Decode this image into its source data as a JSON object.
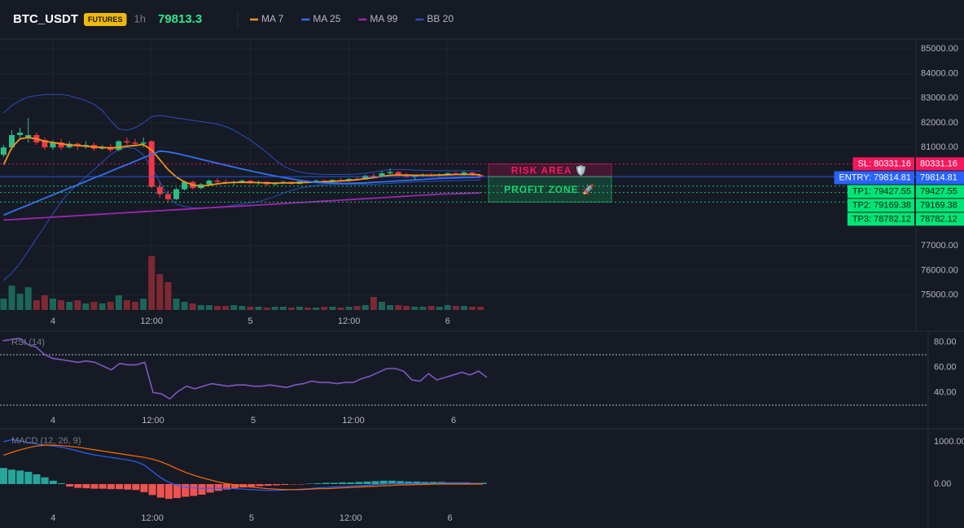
{
  "header": {
    "symbol": "BTC_USDT",
    "badge": "FUTURES",
    "interval": "1h"
  },
  "chart_data": [
    {
      "type": "candlestick",
      "categories": [
        null,
        null,
        null,
        null,
        null,
        null,
        "4",
        null,
        null,
        null,
        null,
        null,
        null,
        null,
        null,
        null,
        null,
        null,
        "12:00",
        null,
        null,
        null,
        null,
        null,
        null,
        null,
        null,
        null,
        null,
        null,
        "5",
        null,
        null,
        null,
        null,
        null,
        null,
        null,
        null,
        null,
        null,
        null,
        "12:00",
        null,
        null,
        null,
        null,
        null,
        null,
        null,
        null,
        null,
        null,
        null,
        "6",
        null,
        null,
        null,
        null
      ],
      "open": [
        80700,
        81000,
        81500,
        81400,
        81500,
        81300,
        81000,
        81200,
        81000,
        81150,
        81050,
        81100,
        80950,
        81000,
        80900,
        81250,
        81200,
        81150,
        81250,
        79400,
        79100,
        78900,
        79300,
        79600,
        79350,
        79500,
        79650,
        79600,
        79550,
        79600,
        79650,
        79550,
        79600,
        79500,
        79550,
        79600,
        79520,
        79620,
        79580,
        79650,
        79600,
        79680,
        79650,
        79720,
        79700,
        79850,
        79800,
        79950,
        80000,
        79850,
        79800,
        79850,
        79900,
        79850,
        79900,
        79950,
        79900,
        79980,
        79880
      ],
      "high": [
        81100,
        81700,
        81800,
        82200,
        81600,
        81400,
        81300,
        81350,
        81250,
        81200,
        81250,
        81200,
        81100,
        81150,
        81300,
        81400,
        81350,
        81400,
        81300,
        79600,
        79250,
        79350,
        79650,
        79650,
        79550,
        79700,
        79750,
        79700,
        79650,
        79700,
        79680,
        79650,
        79620,
        79600,
        79650,
        79620,
        79650,
        79680,
        79700,
        79700,
        79700,
        79750,
        79750,
        79800,
        79900,
        79950,
        80050,
        80150,
        80050,
        79950,
        79900,
        79950,
        79950,
        79950,
        79980,
        80000,
        80050,
        80000,
        79920
      ],
      "low": [
        80600,
        80900,
        81300,
        81200,
        81100,
        80900,
        80900,
        80900,
        80950,
        80900,
        80950,
        80850,
        80900,
        80800,
        80850,
        81100,
        81050,
        81000,
        79350,
        78950,
        78750,
        78850,
        79250,
        79300,
        79300,
        79450,
        79550,
        79500,
        79450,
        79550,
        79500,
        79480,
        79450,
        79450,
        79500,
        79480,
        79500,
        79550,
        79550,
        79580,
        79550,
        79600,
        79600,
        79650,
        79680,
        79750,
        79780,
        79850,
        79800,
        79750,
        79700,
        79800,
        79800,
        79800,
        79850,
        79880,
        79850,
        79850,
        79780
      ],
      "close": [
        81000,
        81500,
        81600,
        81500,
        81200,
        81000,
        81200,
        81000,
        81150,
        81050,
        81100,
        80950,
        81000,
        80900,
        81250,
        81200,
        81150,
        81200,
        79400,
        79100,
        78900,
        79300,
        79600,
        79350,
        79500,
        79650,
        79600,
        79550,
        79600,
        79650,
        79550,
        79600,
        79500,
        79550,
        79600,
        79520,
        79620,
        79580,
        79650,
        79600,
        79680,
        79650,
        79720,
        79700,
        79850,
        79800,
        79950,
        80000,
        79850,
        79800,
        79850,
        79900,
        79850,
        79900,
        79950,
        79900,
        79980,
        79880,
        79813.3
      ],
      "up_color": "#2ebd85",
      "down_color": "#f23645",
      "volume": [
        14,
        30,
        20,
        28,
        12,
        18,
        14,
        12,
        10,
        12,
        8,
        10,
        8,
        10,
        18,
        12,
        10,
        14,
        66,
        44,
        34,
        14,
        10,
        8,
        6,
        6,
        5,
        5,
        6,
        5,
        4,
        4,
        3,
        4,
        4,
        3,
        4,
        3,
        3,
        4,
        4,
        3,
        4,
        5,
        6,
        16,
        10,
        6,
        6,
        5,
        4,
        4,
        5,
        4,
        6,
        5,
        5,
        4,
        4
      ],
      "up_volume_color": "#1b6658",
      "down_volume_color": "#7d2933",
      "series": [
        {
          "name": "MA 7",
          "color": "#f7931a",
          "values": [
            80300,
            81000,
            81350,
            81400,
            81350,
            81250,
            81200,
            81150,
            81100,
            81080,
            81050,
            81020,
            81000,
            80980,
            81000,
            81050,
            81080,
            81120,
            80900,
            80500,
            80100,
            79800,
            79600,
            79480,
            79420,
            79470,
            79520,
            79560,
            79580,
            79580,
            79580,
            79570,
            79560,
            79550,
            79560,
            79560,
            79570,
            79580,
            79590,
            79610,
            79620,
            79640,
            79660,
            79690,
            79730,
            79770,
            79820,
            79870,
            79880,
            79880,
            79870,
            79870,
            79870,
            79880,
            79890,
            79900,
            79900,
            79900,
            79890
          ]
        },
        {
          "name": "MA 25",
          "color": "#3271f0",
          "values": [
            78250,
            78390,
            78530,
            78660,
            78800,
            78940,
            79070,
            79210,
            79350,
            79480,
            79620,
            79760,
            79890,
            80030,
            80170,
            80300,
            80440,
            80580,
            80720,
            80850,
            80820,
            80760,
            80680,
            80600,
            80520,
            80440,
            80360,
            80280,
            80200,
            80120,
            80050,
            79980,
            79910,
            79840,
            79780,
            79720,
            79670,
            79620,
            79580,
            79560,
            79550,
            79540,
            79540,
            79550,
            79560,
            79580,
            79600,
            79620,
            79640,
            79660,
            79680,
            79700,
            79720,
            79740,
            79750,
            79760,
            79770,
            79780,
            79790
          ]
        },
        {
          "name": "MA 99",
          "color": "#9c27b0",
          "values": [
            78050,
            78070,
            78090,
            78110,
            78130,
            78150,
            78170,
            78190,
            78210,
            78230,
            78250,
            78270,
            78290,
            78310,
            78330,
            78350,
            78370,
            78390,
            78410,
            78430,
            78450,
            78470,
            78490,
            78510,
            78530,
            78550,
            78570,
            78590,
            78600,
            78620,
            78640,
            78660,
            78680,
            78700,
            78720,
            78740,
            78760,
            78780,
            78800,
            78820,
            78840,
            78860,
            78880,
            78900,
            78920,
            78940,
            78960,
            78980,
            79000,
            79020,
            79040,
            79060,
            79080,
            79100,
            79110,
            79120,
            79130,
            79140,
            79150
          ]
        },
        {
          "name": "BB 20",
          "color": "#2a4dbf",
          "upper": [
            82400,
            82700,
            82900,
            83050,
            83100,
            83150,
            83150,
            83150,
            83100,
            83000,
            82900,
            82750,
            82500,
            82100,
            81750,
            81700,
            81800,
            82000,
            82250,
            82300,
            82250,
            82200,
            82150,
            82100,
            82050,
            82000,
            81950,
            81850,
            81700,
            81500,
            81300,
            81050,
            80800,
            80500,
            80250,
            80100,
            80000,
            79950,
            79920,
            79900,
            79900,
            79900,
            79900,
            79920,
            79950,
            80000,
            80050,
            80100,
            80100,
            80100,
            80080,
            80070,
            80060,
            80060,
            80050,
            80050,
            80050,
            80050,
            80050
          ],
          "lower": [
            75600,
            75900,
            76300,
            76800,
            77300,
            77800,
            78300,
            78800,
            79200,
            79500,
            79800,
            80100,
            80400,
            80700,
            80900,
            81000,
            80950,
            80700,
            80200,
            79600,
            79000,
            78700,
            78600,
            78550,
            78550,
            78560,
            78580,
            78600,
            78650,
            78700,
            78750,
            78800,
            78900,
            79000,
            79150,
            79250,
            79350,
            79400,
            79450,
            79480,
            79500,
            79500,
            79500,
            79500,
            79500,
            79500,
            79520,
            79540,
            79560,
            79580,
            79600,
            79610,
            79620,
            79630,
            79640,
            79650,
            79660,
            79670,
            79680
          ]
        }
      ],
      "ylim": [
        74400,
        85400
      ],
      "yticks": [
        {
          "value": 75000,
          "label": "75000.00"
        },
        {
          "value": 76000,
          "label": "76000.00"
        },
        {
          "value": 77000,
          "label": "77000.00"
        },
        {
          "value": 81000,
          "label": "81000.00"
        },
        {
          "value": 82000,
          "label": "82000.00"
        },
        {
          "value": 83000,
          "label": "83000.00"
        },
        {
          "value": 84000,
          "label": "84000.00"
        },
        {
          "value": 85000,
          "label": "85000.00"
        }
      ],
      "grid": true,
      "levels": [
        {
          "label": "SL: 80331.16",
          "value": 80331.16,
          "color": "#f7185e",
          "text_color": "#ffffff",
          "style": "dotted"
        },
        {
          "label": "ENTRY: 79814.81",
          "value": 79814.81,
          "color": "#2962ff",
          "text_color": "#ffffff",
          "style": "solid"
        },
        {
          "label": "TP1: 79427.55",
          "value": 79427.55,
          "color": "#00e676",
          "text_color": "#0b1a10",
          "style": "dotted"
        },
        {
          "label": "TP2: 79169.38",
          "value": 79169.38,
          "color": "#00e676",
          "text_color": "#0b1a10",
          "style": "dotted"
        },
        {
          "label": "TP3: 78782.12",
          "value": 78782.12,
          "color": "#00e676",
          "text_color": "#0b1a10",
          "style": "dotted"
        }
      ],
      "zones": [
        {
          "label": "RISK AREA 🛡️",
          "color": "#f7185e"
        },
        {
          "label": "PROFIT ZONE 🚀",
          "color": "#19d36f"
        }
      ]
    },
    {
      "type": "line",
      "label": "RSI (14)",
      "color": "#7e57c2",
      "values": [
        81,
        82,
        83,
        78,
        76,
        70,
        67,
        66,
        65,
        64,
        65,
        64,
        61,
        58,
        63,
        62,
        62,
        64,
        40,
        39,
        35,
        41,
        45,
        43,
        45,
        47,
        46,
        45,
        46,
        46,
        45,
        45,
        46,
        45,
        44,
        46,
        47,
        49,
        48,
        48,
        47,
        48,
        48,
        51,
        53,
        56,
        59,
        59,
        57,
        50,
        49,
        55,
        50,
        52,
        54,
        56,
        54,
        57,
        52
      ],
      "ylim": [
        21,
        88
      ],
      "yticks": [
        {
          "value": 40,
          "label": "40.00"
        },
        {
          "value": 60,
          "label": "60.00"
        },
        {
          "value": 80,
          "label": "80.00"
        }
      ],
      "levels": [
        70,
        30
      ]
    },
    {
      "type": "macd",
      "label": "MACD (12, 26, 9)",
      "macd": [
        1000,
        1050,
        1020,
        980,
        950,
        920,
        900,
        870,
        830,
        780,
        730,
        690,
        660,
        630,
        600,
        570,
        530,
        450,
        300,
        150,
        40,
        -30,
        -70,
        -90,
        -100,
        -100,
        -100,
        -100,
        -110,
        -120,
        -130,
        -140,
        -150,
        -150,
        -140,
        -130,
        -120,
        -110,
        -90,
        -80,
        -70,
        -60,
        -50,
        -40,
        -30,
        -10,
        0,
        10,
        10,
        10,
        10,
        10,
        10,
        20,
        20,
        20,
        20,
        10,
        10
      ],
      "signal": [
        680,
        750,
        810,
        860,
        900,
        920,
        920,
        910,
        890,
        870,
        840,
        810,
        780,
        750,
        720,
        690,
        660,
        630,
        590,
        530,
        450,
        360,
        280,
        210,
        150,
        100,
        50,
        10,
        -20,
        -50,
        -70,
        -90,
        -110,
        -120,
        -130,
        -130,
        -130,
        -120,
        -110,
        -110,
        -100,
        -90,
        -80,
        -70,
        -60,
        -50,
        -40,
        -30,
        -20,
        -20,
        -10,
        -10,
        0,
        0,
        0,
        0,
        0,
        0,
        0
      ],
      "histogram": [
        380,
        340,
        320,
        290,
        230,
        160,
        80,
        20,
        -60,
        -90,
        -100,
        -110,
        -110,
        -120,
        -120,
        -130,
        -140,
        -190,
        -260,
        -320,
        -350,
        -330,
        -300,
        -280,
        -250,
        -200,
        -160,
        -130,
        -100,
        -80,
        -60,
        -50,
        -40,
        -30,
        -20,
        -10,
        -10,
        10,
        20,
        30,
        30,
        40,
        40,
        50,
        60,
        70,
        80,
        80,
        70,
        60,
        60,
        50,
        50,
        50,
        40,
        40,
        40,
        30,
        30
      ],
      "macd_color": "#2962ff",
      "signal_color": "#ff6d00",
      "positive_color": "#26a69a",
      "negative_color": "#ef5350",
      "ylim": [
        -577,
        1288
      ],
      "yticks": [
        {
          "value": 0,
          "label": "0.00"
        },
        {
          "value": 1000,
          "label": "1000.00"
        }
      ]
    }
  ]
}
